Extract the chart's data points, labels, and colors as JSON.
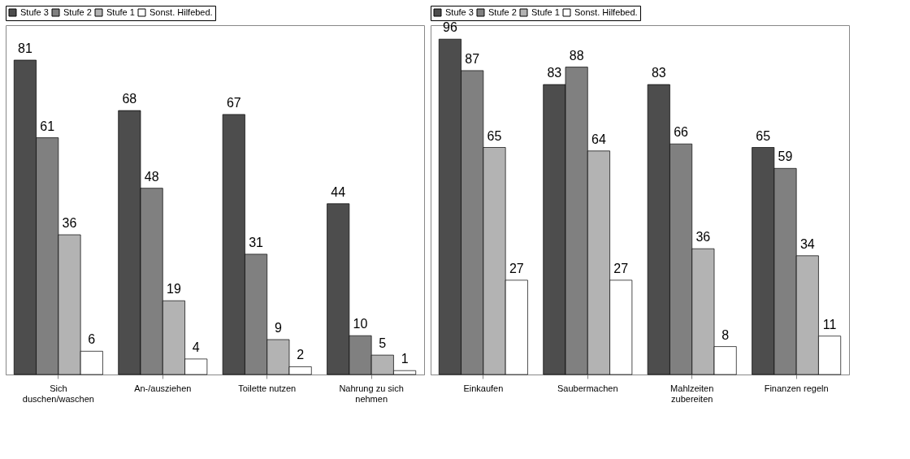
{
  "chart_data": [
    {
      "type": "bar",
      "categories": [
        "Sich duschen/waschen",
        "An-/ausziehen",
        "Toilette nutzen",
        "Nahrung zu sich nehmen"
      ],
      "series": [
        {
          "name": "Stufe 3",
          "color": "#4d4d4d",
          "values": [
            81,
            68,
            67,
            44
          ]
        },
        {
          "name": "Stufe 2",
          "color": "#808080",
          "values": [
            61,
            48,
            31,
            10
          ]
        },
        {
          "name": "Stufe 1",
          "color": "#b3b3b3",
          "values": [
            36,
            19,
            9,
            5
          ]
        },
        {
          "name": "Sonst. Hilfebed.",
          "color": "#ffffff",
          "values": [
            6,
            4,
            2,
            1
          ]
        }
      ],
      "ylim": [
        0,
        90
      ],
      "data_labels": true,
      "legend": "top"
    },
    {
      "type": "bar",
      "categories": [
        "Einkaufen",
        "Saubermachen",
        "Mahlzeiten zubereiten",
        "Finanzen regeln"
      ],
      "series": [
        {
          "name": "Stufe 3",
          "color": "#4d4d4d",
          "values": [
            96,
            83,
            83,
            65
          ]
        },
        {
          "name": "Stufe 2",
          "color": "#808080",
          "values": [
            87,
            88,
            66,
            59
          ]
        },
        {
          "name": "Stufe 1",
          "color": "#b3b3b3",
          "values": [
            65,
            64,
            36,
            34
          ]
        },
        {
          "name": "Sonst. Hilfebed.",
          "color": "#ffffff",
          "values": [
            27,
            27,
            8,
            11
          ]
        }
      ],
      "ylim": [
        0,
        100
      ],
      "data_labels": true,
      "legend": "top"
    }
  ]
}
